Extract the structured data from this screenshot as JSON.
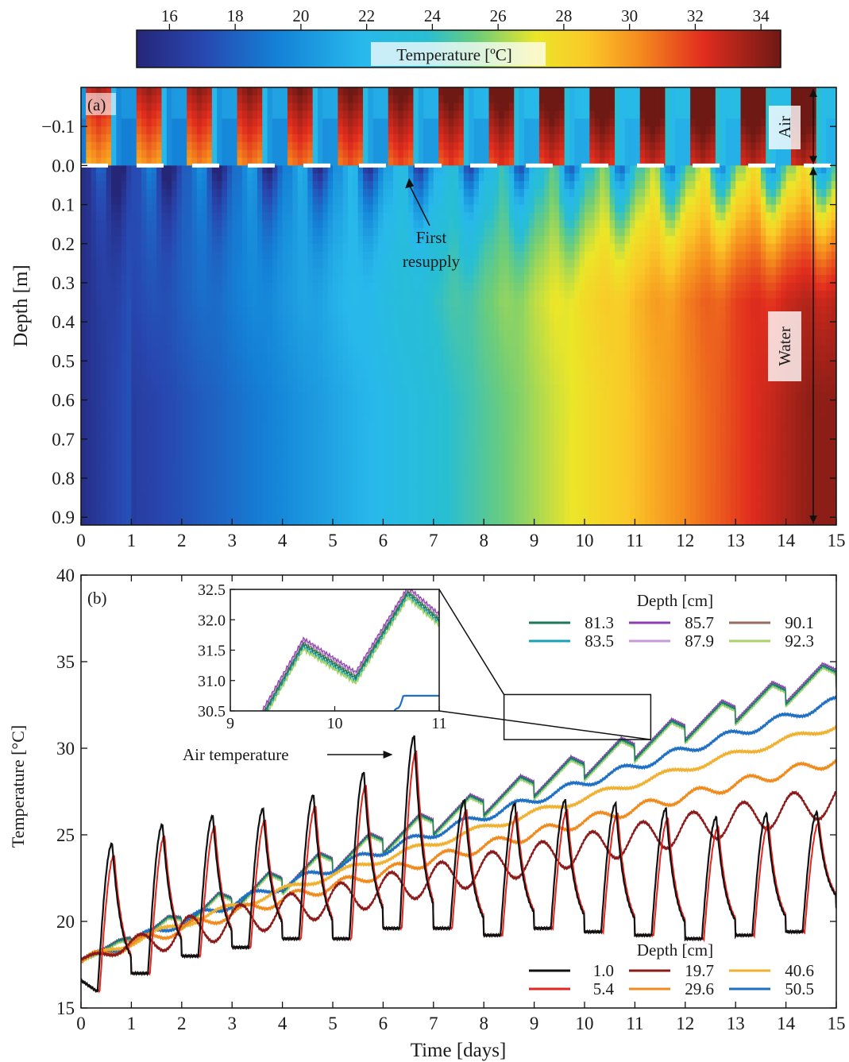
{
  "chart_data": [
    {
      "type": "heatmap",
      "panel_label": "(a)",
      "colorbar": {
        "label": "Temperature [ºC]",
        "ticks": [
          16,
          18,
          20,
          22,
          24,
          26,
          28,
          30,
          32,
          34
        ],
        "range": [
          15,
          34.6
        ]
      },
      "ylabel": "Depth [m]",
      "y_ticks": [
        -0.1,
        0.0,
        0.1,
        0.2,
        0.3,
        0.4,
        0.5,
        0.6,
        0.7,
        0.8,
        0.9
      ],
      "y_tick_labels": [
        "−0.1",
        "0.0",
        "0.1",
        "0.2",
        "0.3",
        "0.4",
        "0.5",
        "0.6",
        "0.7",
        "0.8",
        "0.9"
      ],
      "ylim": [
        -0.2,
        0.92
      ],
      "x_ticks": [
        0,
        1,
        2,
        3,
        4,
        5,
        6,
        7,
        8,
        9,
        10,
        11,
        12,
        13,
        14,
        15
      ],
      "xlim": [
        0,
        15
      ],
      "labels": {
        "air": "Air",
        "water": "Water"
      },
      "annotation": {
        "text_line1": "First",
        "text_line2": "resupply",
        "x": 6.5,
        "y": 0.02
      }
    },
    {
      "type": "line",
      "panel_label": "(b)",
      "xlabel": "Time [days]",
      "ylabel": "Temperature [°C]",
      "xlim": [
        0,
        15
      ],
      "ylim": [
        15,
        40
      ],
      "x_ticks": [
        0,
        1,
        2,
        3,
        4,
        5,
        6,
        7,
        8,
        9,
        10,
        11,
        12,
        13,
        14,
        15
      ],
      "y_ticks": [
        15,
        20,
        25,
        30,
        35,
        40
      ],
      "annotation": {
        "text": "Air temperature",
        "x": 6.35,
        "y": 29.6
      },
      "legend_upper": {
        "title": "Depth [cm]",
        "entries": [
          "81.3",
          "83.5",
          "85.7",
          "87.9",
          "90.1",
          "92.3"
        ],
        "colors": [
          "#1b7a5a",
          "#18a2b8",
          "#8b3fb0",
          "#c79ad8",
          "#9a6a5a",
          "#a8d26a"
        ]
      },
      "legend_lower": {
        "title": "Depth [cm]",
        "entries": [
          "1.0",
          "5.4",
          "19.7",
          "29.6",
          "40.6",
          "50.5"
        ],
        "colors": [
          "#111111",
          "#e3261f",
          "#8b1a1a",
          "#f08a1c",
          "#f0b030",
          "#1f6fc4"
        ]
      },
      "series_summary": [
        {
          "name": "1.0",
          "daily_min": [
            16.0,
            17.0,
            18.0,
            18.5,
            19.0,
            19.0,
            19.6,
            19.6,
            19.2,
            19.6,
            19.4,
            19.2,
            19.0,
            19.2,
            19.4,
            20.8
          ],
          "daily_max": [
            24.5,
            25.6,
            26.1,
            26.5,
            27.3,
            28.6,
            30.7,
            27.0,
            26.8,
            27.0,
            26.8,
            26.5,
            26.0,
            26.2,
            26.3
          ]
        },
        {
          "name": "92.3",
          "start": 17.7,
          "end": 34.4
        },
        {
          "name": "50.5",
          "start": 17.6,
          "end": 32.7
        },
        {
          "name": "40.6",
          "start": 17.6,
          "end": 31.3
        },
        {
          "name": "29.6",
          "start": 17.6,
          "end": 29.3
        },
        {
          "name": "19.7",
          "start": 17.8,
          "end": 27.0
        }
      ],
      "inset": {
        "xlim": [
          9,
          11
        ],
        "ylim": [
          30.5,
          32.5
        ],
        "x_ticks": [
          9,
          10,
          11
        ],
        "y_ticks": [
          30.5,
          31.0,
          31.5,
          32.0,
          32.5
        ],
        "y_tick_labels": [
          "30.5",
          "31.0",
          "31.5",
          "32.0",
          "32.5"
        ]
      }
    }
  ]
}
